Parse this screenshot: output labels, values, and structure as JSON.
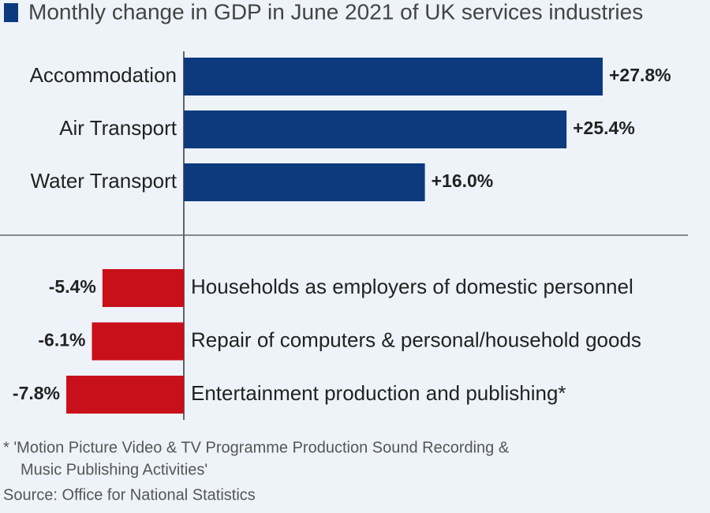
{
  "chart_data": {
    "type": "bar",
    "orientation": "horizontal",
    "title": "Monthly change in GDP in June 2021 of UK services industries",
    "title_marker_color": "#0d3a7d",
    "categories": [
      "Accommodation",
      "Air Transport",
      "Water Transport",
      "Households as employers of domestic personnel",
      "Repair of computers & personal/household goods",
      "Entertainment production and publishing*"
    ],
    "values": [
      27.8,
      25.4,
      16.0,
      -5.4,
      -6.1,
      -7.8
    ],
    "value_labels": [
      "+27.8%",
      "+25.4%",
      "+16.0%",
      "-5.4%",
      "-6.1%",
      "-7.8%"
    ],
    "colors": [
      "#0d3a7d",
      "#0d3a7d",
      "#0d3a7d",
      "#c8101a",
      "#c8101a",
      "#c8101a"
    ],
    "footnote": [
      "* 'Motion Picture Video & TV Programme Production Sound Recording &",
      "Music Publishing Activities'"
    ],
    "source": "Source: Office for National Statistics"
  }
}
